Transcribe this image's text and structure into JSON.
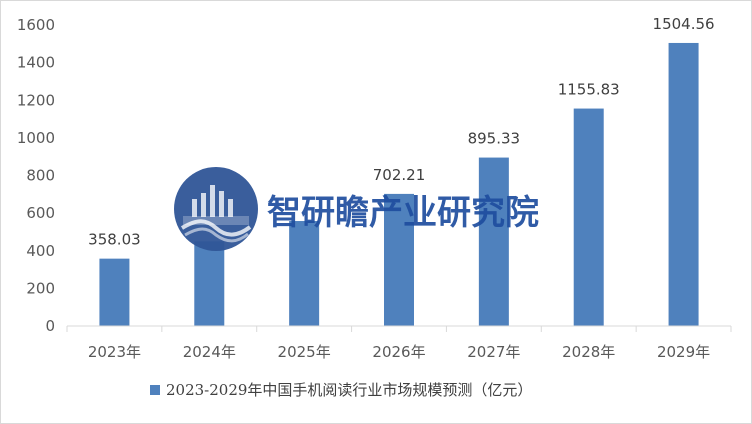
{
  "chart_data": {
    "type": "bar",
    "title": "",
    "xlabel": "",
    "ylabel": "",
    "categories": [
      "2023年",
      "2024年",
      "2025年",
      "2026年",
      "2027年",
      "2028年",
      "2029年"
    ],
    "series": [
      {
        "name": "2023-2029年中国手机阅读行业市场规模预测（亿元）",
        "values": [
          358.03,
          450.0,
          558.0,
          702.21,
          895.33,
          1155.83,
          1504.56
        ],
        "labels": [
          "358.03",
          "",
          "",
          "702.21",
          "895.33",
          "1155.83",
          "1504.56"
        ],
        "color": "#4f81bd"
      }
    ],
    "ylim": [
      0,
      1600
    ],
    "yticks": [
      0,
      200,
      400,
      600,
      800,
      1000,
      1200,
      1400,
      1600
    ],
    "grid": false,
    "legend_position": "bottom"
  },
  "watermark": {
    "text": "智研瞻产业研究院",
    "logo_color": "#2f5597",
    "text_color": "#1f4e9f"
  }
}
